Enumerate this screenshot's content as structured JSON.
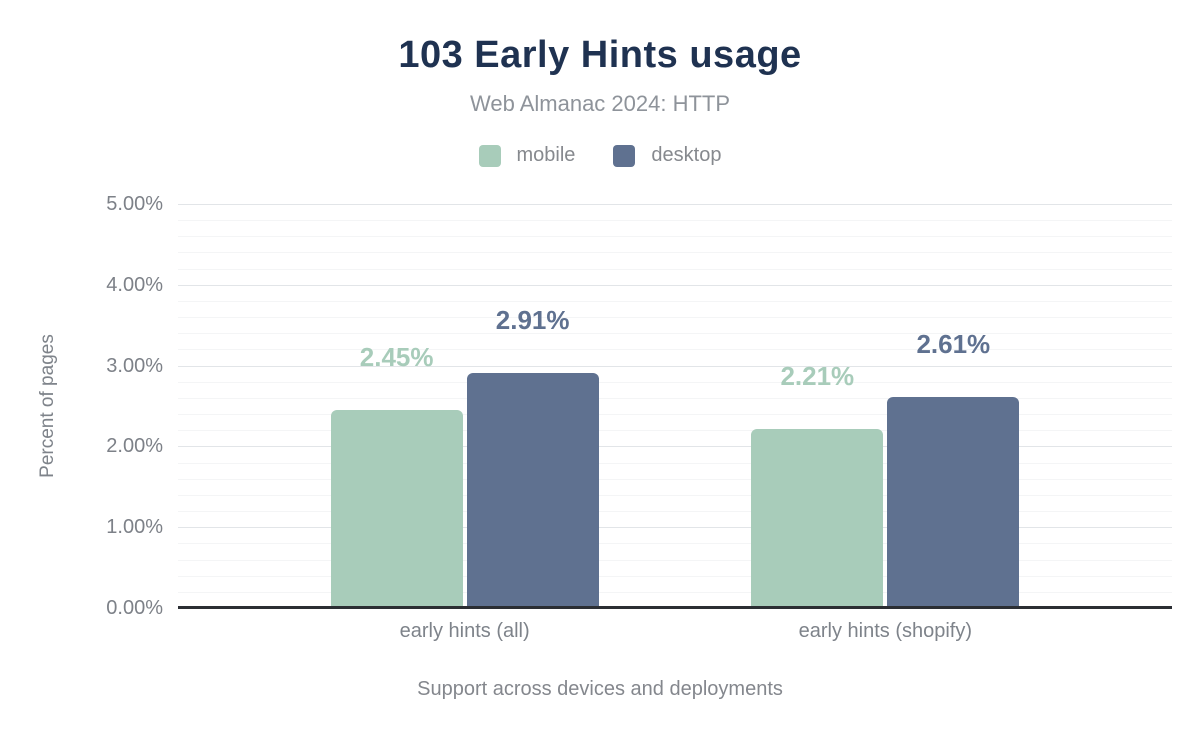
{
  "chart_data": {
    "type": "bar",
    "title": "103 Early Hints usage",
    "subtitle": "Web Almanac 2024: HTTP",
    "categories": [
      "early hints (all)",
      "early hints (shopify)"
    ],
    "series": [
      {
        "name": "mobile",
        "color": "#a8ccba",
        "values": [
          2.45,
          2.21
        ],
        "labels": [
          "2.45%",
          "2.21%"
        ]
      },
      {
        "name": "desktop",
        "color": "#5f7190",
        "values": [
          2.91,
          2.61
        ],
        "labels": [
          "2.91%",
          "2.61%"
        ]
      }
    ],
    "xlabel": "Support across devices and deployments",
    "ylabel": "Percent of pages",
    "ylim": [
      0,
      5
    ],
    "yticks": [
      "0.00%",
      "1.00%",
      "2.00%",
      "3.00%",
      "4.00%",
      "5.00%"
    ],
    "y_major_step": 1.0,
    "y_minor_step": 0.2,
    "grid": true,
    "legend_position": "top",
    "value_label_units": "%"
  },
  "colors": {
    "title": "#1f3251",
    "subtitle": "#8e939a",
    "axis_text": "#7d8188",
    "axis_line": "#2b2e33",
    "gridline_major": "#e2e5e8",
    "gridline_minor": "#f4f5f6",
    "background": "#ffffff",
    "mobile": "#a8ccba",
    "desktop": "#5f7190"
  }
}
